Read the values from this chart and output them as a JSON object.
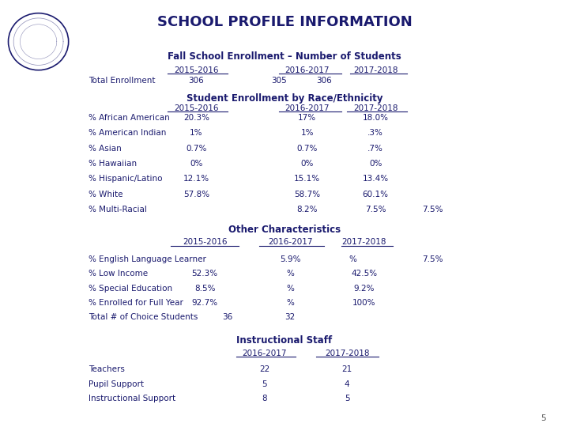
{
  "title": "SCHOOL PROFILE INFORMATION",
  "section1_title": "Fall School Enrollment – Number of Students",
  "enroll_h1": "2015-2016",
  "enroll_h2": "2016-2017",
  "enroll_h3": "2017-2018",
  "enroll_label": "Total Enrollment",
  "enroll_v1": "306",
  "enroll_v2": "305",
  "enroll_v3": "306",
  "section2_title": "Student Enrollment by Race/Ethnicity",
  "race_h1": "2015-2016",
  "race_h2": "2016-2017",
  "race_h3": "2017-2018",
  "race_rows": [
    [
      "% African American",
      "20.3%",
      "17%",
      "18.0%",
      ""
    ],
    [
      "% American Indian",
      "1%",
      "1%",
      ".3%",
      ""
    ],
    [
      "% Asian",
      "0.7%",
      "0.7%",
      ".7%",
      ""
    ],
    [
      "% Hawaiian",
      "0%",
      "0%",
      "0%",
      ""
    ],
    [
      "% Hispanic/Latino",
      "12.1%",
      "15.1%",
      "13.4%",
      ""
    ],
    [
      "% White",
      "57.8%",
      "58.7%",
      "60.1%",
      ""
    ],
    [
      "% Multi-Racial",
      "",
      "8.2%",
      "7.5%",
      "7.5%"
    ]
  ],
  "section3_title": "Other Characteristics",
  "other_h1": "2015-2016",
  "other_h2": "2016-2017",
  "other_h3": "2017-2018",
  "other_rows": [
    [
      "% English Language Learner",
      "",
      "5.9%",
      "%",
      "7.5%"
    ],
    [
      "% Low Income",
      "52.3%",
      "%",
      "42.5%",
      ""
    ],
    [
      "% Special Education",
      "8.5%",
      "%",
      "9.2%",
      ""
    ],
    [
      "% Enrolled for Full Year",
      "92.7%",
      "%",
      "100%",
      ""
    ],
    [
      "Total # of Choice Students",
      "36",
      "32",
      "",
      ""
    ]
  ],
  "section4_title": "Instructional Staff",
  "staff_h1": "2016-2017",
  "staff_h2": "2017-2018",
  "staff_rows": [
    [
      "Teachers",
      "22",
      "21"
    ],
    [
      "Pupil Support",
      "5",
      "4"
    ],
    [
      "Instructional Support",
      "8",
      "5"
    ]
  ],
  "page_num": "5",
  "text_color": "#1a1a6e",
  "bg_color": "#ffffff"
}
